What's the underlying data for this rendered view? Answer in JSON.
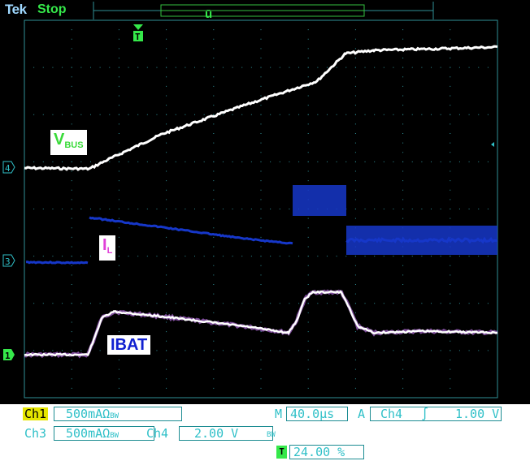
{
  "header": {
    "brand": "Tek",
    "status": "Stop"
  },
  "traces": {
    "vbus_label": "V",
    "vbus_sub": "BUS",
    "il_label": "I",
    "il_sub": "L",
    "ibat_label": "IBAT"
  },
  "markers": {
    "ch4": "4",
    "ch3": "3",
    "ch1": "1",
    "trigger": "T"
  },
  "readouts": {
    "ch1_name": "Ch1",
    "ch1_scale": "500mA",
    "ch1_unit": "Ω",
    "ch3_name": "Ch3",
    "ch3_scale": "500mA",
    "ch3_unit": "Ω",
    "ch4_name": "Ch4",
    "ch4_scale": "2.00 V",
    "timebase_prefix": "M",
    "timebase": "40.0µs",
    "trigger_prefix": "A",
    "trigger_source": "Ch4",
    "trigger_slope": "∫",
    "trigger_level": "1.00 V",
    "trigger_pos_icon": "T",
    "trigger_pos": "24.00 %"
  },
  "colors": {
    "bg": "#000000",
    "grid": "#2f8f96",
    "vbus": "#ffffff",
    "il": "#1637c9",
    "ibat": "#ffffff",
    "ch1": "#e6e600",
    "ch3": "#3a7bff",
    "ch4": "#35e84a",
    "label_vbus": "#3adb3a",
    "label_il": "#e040d8",
    "label_ibat": "#1020d0"
  }
}
